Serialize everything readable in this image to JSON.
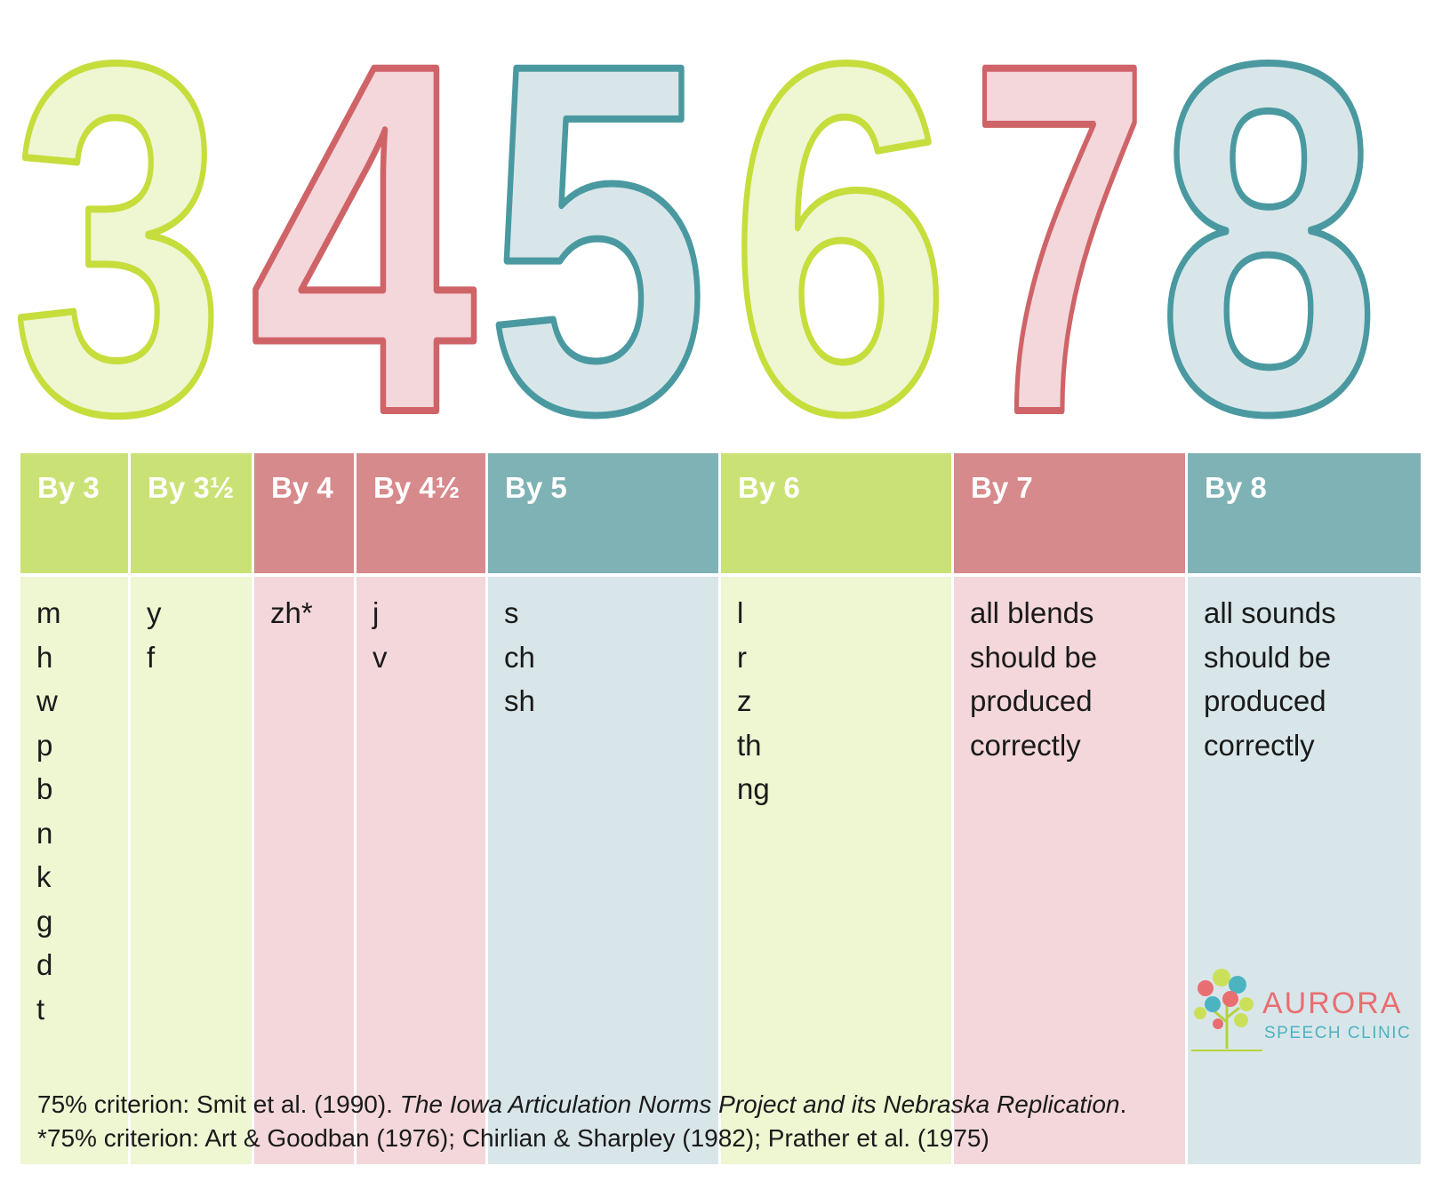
{
  "digits": [
    {
      "char": "3",
      "color": "green"
    },
    {
      "char": "4",
      "color": "pink"
    },
    {
      "char": "5",
      "color": "teal"
    },
    {
      "char": "6",
      "color": "green"
    },
    {
      "char": "7",
      "color": "pink"
    },
    {
      "char": "8",
      "color": "teal"
    }
  ],
  "colors": {
    "green_fill": "#eef6d2",
    "green_stroke": "#c6dd3c",
    "green_header": "#cae275",
    "pink_fill": "#f3d7db",
    "pink_stroke": "#cf6468",
    "pink_header": "#d78a8c",
    "teal_fill": "#d8e6ea",
    "teal_stroke": "#4a99a0",
    "teal_header": "#7fb2b5"
  },
  "columns": [
    {
      "header": "By 3",
      "color": "green",
      "items": [
        "m",
        "h",
        "w",
        "p",
        "b",
        "n",
        "k",
        "g",
        "d",
        "t"
      ]
    },
    {
      "header": "By 3½",
      "color": "green",
      "items": [
        "y",
        "f"
      ]
    },
    {
      "header": "By 4",
      "color": "pink",
      "items": [
        "zh*"
      ]
    },
    {
      "header": "By 4½",
      "color": "pink",
      "items": [
        "j",
        "v"
      ]
    },
    {
      "header": "By 5",
      "color": "teal",
      "items": [
        "s",
        "ch",
        "sh"
      ]
    },
    {
      "header": "By 6",
      "color": "green",
      "items": [
        "l",
        "r",
        "z",
        "th",
        "ng"
      ]
    },
    {
      "header": "By 7",
      "color": "pink",
      "items": [
        "all blends",
        "should be",
        "produced",
        "correctly"
      ]
    },
    {
      "header": "By 8",
      "color": "teal",
      "items": [
        "all sounds",
        "should be",
        "produced",
        "correctly"
      ]
    }
  ],
  "footnotes": {
    "line1_prefix": "75% criterion: Smit et al. (1990). ",
    "line1_title": "The Iowa Articulation Norms Project and its Nebraska Replication",
    "line1_suffix": ".",
    "line2": "*75% criterion: Art & Goodban (1976); Chirlian & Sharpley (1982); Prather et al. (1975)"
  },
  "logo": {
    "name": "AURORA",
    "subtitle": "SPEECH CLINIC",
    "icon": "tree-of-speech-bubbles-icon"
  }
}
